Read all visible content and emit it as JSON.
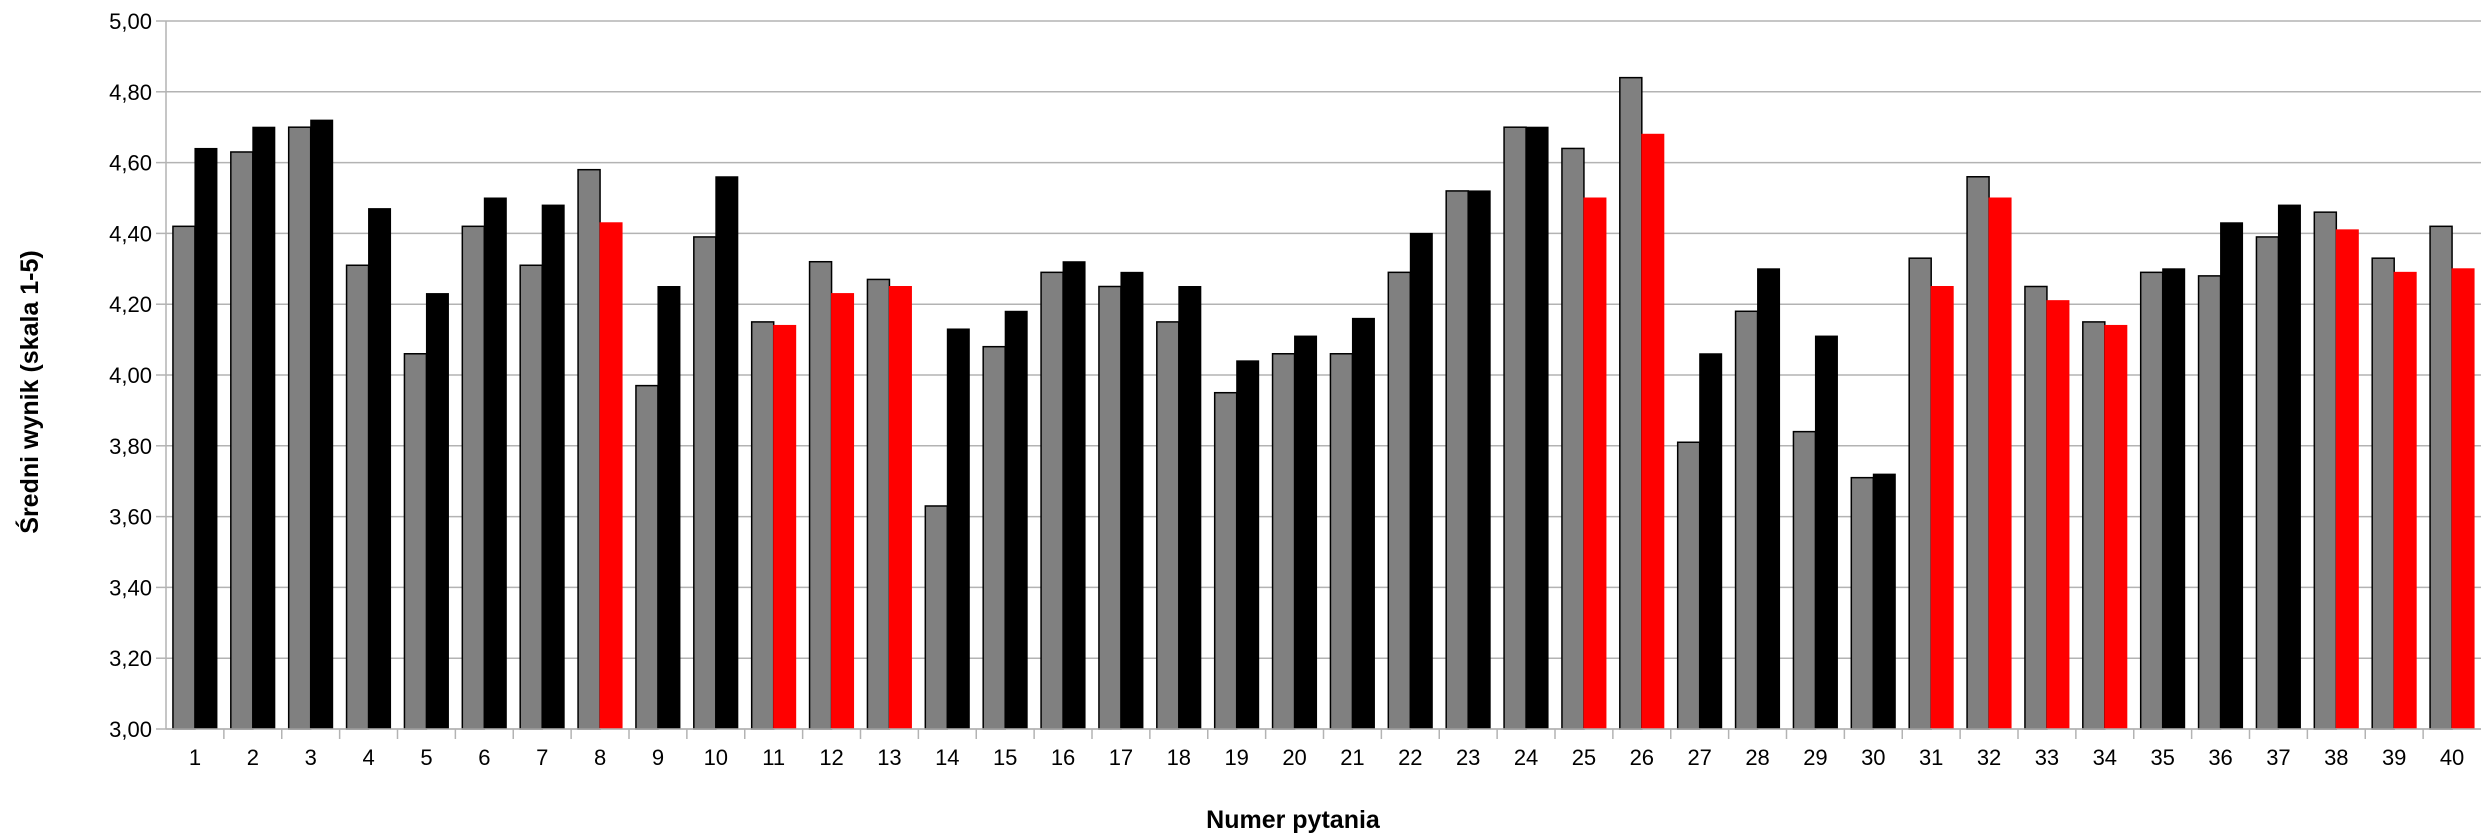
{
  "chart_data": {
    "type": "bar",
    "title": "",
    "xlabel": "Numer pytania",
    "ylabel": "Średni wynik (skala 1-5)",
    "ylim": [
      3.0,
      5.0
    ],
    "ytick_labels": [
      "3,00",
      "3,20",
      "3,40",
      "3,60",
      "3,80",
      "4,00",
      "4,20",
      "4,40",
      "4,60",
      "4,80",
      "5,00"
    ],
    "categories": [
      "1",
      "2",
      "3",
      "4",
      "5",
      "6",
      "7",
      "8",
      "9",
      "10",
      "11",
      "12",
      "13",
      "14",
      "15",
      "16",
      "17",
      "18",
      "19",
      "20",
      "21",
      "22",
      "23",
      "24",
      "25",
      "26",
      "27",
      "28",
      "29",
      "30",
      "31",
      "32",
      "33",
      "34",
      "35",
      "36",
      "37",
      "38",
      "39",
      "40"
    ],
    "grid": true,
    "legend": "none",
    "series": [
      {
        "color": "#808080",
        "values": [
          4.42,
          4.63,
          4.7,
          4.31,
          4.06,
          4.42,
          4.31,
          4.58,
          3.97,
          4.39,
          4.15,
          4.32,
          4.27,
          3.63,
          4.08,
          4.29,
          4.25,
          4.15,
          3.95,
          4.06,
          4.06,
          4.29,
          4.52,
          4.7,
          4.64,
          4.84,
          3.81,
          4.18,
          3.84,
          3.71,
          4.33,
          4.56,
          4.25,
          4.15,
          4.29,
          4.28,
          4.39,
          4.46,
          4.33,
          4.42
        ]
      },
      {
        "color": "#000000",
        "highlight_color": "#ff0000",
        "values": [
          4.64,
          4.7,
          4.72,
          4.47,
          4.23,
          4.5,
          4.48,
          4.43,
          4.25,
          4.56,
          4.14,
          4.23,
          4.25,
          4.13,
          4.18,
          4.32,
          4.29,
          4.25,
          4.04,
          4.11,
          4.16,
          4.4,
          4.52,
          4.7,
          4.5,
          4.68,
          4.06,
          4.3,
          4.11,
          3.72,
          4.25,
          4.5,
          4.21,
          4.14,
          4.3,
          4.43,
          4.48,
          4.41,
          4.29,
          4.3
        ],
        "highlighted": [
          false,
          false,
          false,
          false,
          false,
          false,
          false,
          true,
          false,
          false,
          true,
          true,
          true,
          false,
          false,
          false,
          false,
          false,
          false,
          false,
          false,
          false,
          false,
          false,
          true,
          true,
          false,
          false,
          false,
          false,
          true,
          true,
          true,
          true,
          false,
          false,
          false,
          true,
          true,
          true
        ]
      }
    ]
  }
}
